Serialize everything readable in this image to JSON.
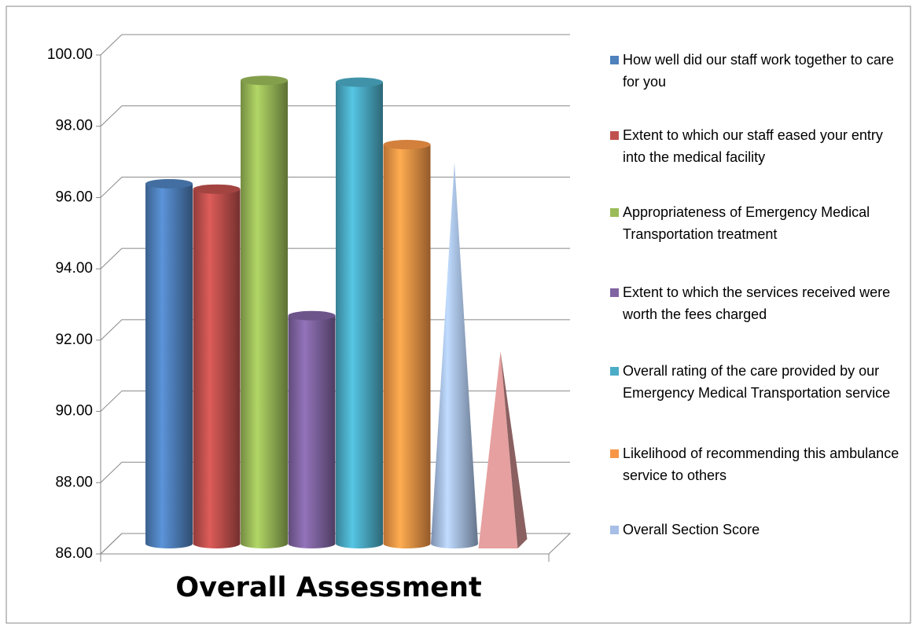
{
  "chart_data": {
    "type": "bar3d",
    "title": "Overall Assessment",
    "series": [
      {
        "name": "How well did our staff work together to care for you",
        "color": "#4f81bd",
        "shape": "cylinder",
        "values": [
          96.1
        ]
      },
      {
        "name": "Extent to which our staff eased your entry into the medical facility",
        "color": "#c0504d",
        "shape": "cylinder",
        "values": [
          95.95
        ]
      },
      {
        "name": "Appropriateness of Emergency Medical Transportation treatment",
        "color": "#9bbb59",
        "shape": "cylinder",
        "values": [
          99.0
        ]
      },
      {
        "name": "Extent to which the services received were worth the fees charged",
        "color": "#8064a2",
        "shape": "cylinder",
        "values": [
          92.4
        ]
      },
      {
        "name": "Overall rating of the care provided by our Emergency Medical Transportation service",
        "color": "#4bacc6",
        "shape": "cylinder",
        "values": [
          98.95
        ]
      },
      {
        "name": "Likelihood of recommending this ambulance service to others",
        "color": "#f79646",
        "shape": "cylinder",
        "values": [
          97.2
        ]
      },
      {
        "name": "Overall Section  Score",
        "color": "#a7bfe6",
        "shape": "cone",
        "values": [
          96.7
        ]
      },
      {
        "name": null,
        "color": "#e6a0a0",
        "shape": "pyramid",
        "values": [
          91.4
        ]
      }
    ],
    "ylim": [
      86,
      100
    ],
    "yticks": [
      {
        "value": 86,
        "label": "86.00"
      },
      {
        "value": 88,
        "label": "88.00"
      },
      {
        "value": 90,
        "label": "90.00"
      },
      {
        "value": 92,
        "label": "92.00"
      },
      {
        "value": 94,
        "label": "94.00"
      },
      {
        "value": 96,
        "label": "96.00"
      },
      {
        "value": 98,
        "label": "98.00"
      },
      {
        "value": 100,
        "label": "100.00"
      }
    ],
    "grid": true,
    "legend": "right"
  }
}
